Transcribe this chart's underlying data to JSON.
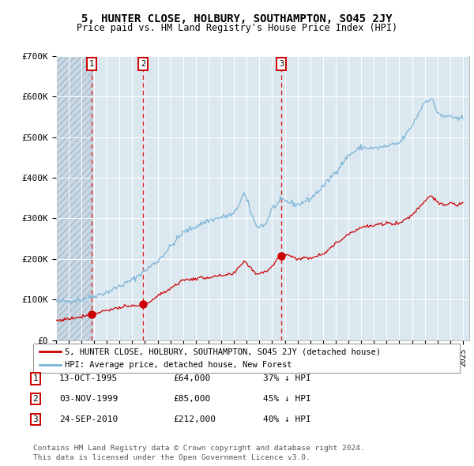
{
  "title": "5, HUNTER CLOSE, HOLBURY, SOUTHAMPTON, SO45 2JY",
  "subtitle": "Price paid vs. HM Land Registry's House Price Index (HPI)",
  "legend_line1": "5, HUNTER CLOSE, HOLBURY, SOUTHAMPTON, SO45 2JY (detached house)",
  "legend_line2": "HPI: Average price, detached house, New Forest",
  "footnote1": "Contains HM Land Registry data © Crown copyright and database right 2024.",
  "footnote2": "This data is licensed under the Open Government Licence v3.0.",
  "purchases": [
    {
      "label": "1",
      "date": "13-OCT-1995",
      "price": 64000,
      "year": 1995.79,
      "pct": "37%",
      "dir": "↓"
    },
    {
      "label": "2",
      "date": "03-NOV-1999",
      "price": 85000,
      "year": 1999.84,
      "pct": "45%",
      "dir": "↓"
    },
    {
      "label": "3",
      "date": "24-SEP-2010",
      "price": 212000,
      "year": 2010.73,
      "pct": "40%",
      "dir": "↓"
    }
  ],
  "hpi_color": "#7ab4d8",
  "price_color": "#cc0000",
  "vline_color": "#dd0000",
  "background_plot": "#dce8f0",
  "hatch_region_color": "#c8d8e4",
  "ylim": [
    0,
    700000
  ],
  "xlim_start": 1993.0,
  "xlim_end": 2025.5,
  "yticks": [
    0,
    100000,
    200000,
    300000,
    400000,
    500000,
    600000,
    700000
  ],
  "ytick_labels": [
    "£0",
    "£100K",
    "£200K",
    "£300K",
    "£400K",
    "£500K",
    "£600K",
    "£700K"
  ],
  "hpi_anchors_t": [
    1993.0,
    1995.0,
    1997.0,
    1999.0,
    2001.0,
    2003.0,
    2005.0,
    2007.0,
    2007.8,
    2008.75,
    2009.5,
    2010.0,
    2010.8,
    2011.5,
    2012.0,
    2013.0,
    2014.0,
    2015.0,
    2016.0,
    2017.0,
    2018.0,
    2019.0,
    2020.0,
    2020.5,
    2021.0,
    2021.5,
    2022.0,
    2022.5,
    2023.0,
    2023.5,
    2024.0,
    2024.5,
    2025.0
  ],
  "hpi_anchors_v": [
    95000,
    100000,
    118000,
    148000,
    195000,
    265000,
    295000,
    310000,
    362000,
    280000,
    285000,
    325000,
    345000,
    338000,
    333000,
    348000,
    378000,
    415000,
    455000,
    475000,
    472000,
    477000,
    485000,
    505000,
    528000,
    558000,
    588000,
    595000,
    562000,
    548000,
    554000,
    542000,
    548000
  ],
  "price_anchors_t": [
    1993.0,
    1994.5,
    1995.79,
    1997.0,
    1998.0,
    1999.0,
    1999.84,
    2001.0,
    2002.0,
    2003.0,
    2005.0,
    2006.0,
    2007.0,
    2007.8,
    2008.75,
    2009.5,
    2010.0,
    2010.73,
    2011.5,
    2012.0,
    2013.0,
    2014.0,
    2015.0,
    2016.0,
    2017.0,
    2018.0,
    2019.0,
    2020.0,
    2021.0,
    2022.0,
    2022.5,
    2023.0,
    2023.5,
    2024.0,
    2024.5,
    2025.0
  ],
  "price_anchors_v": [
    48000,
    55000,
    64000,
    74000,
    80000,
    84000,
    85000,
    108000,
    128000,
    148000,
    155000,
    158000,
    163000,
    196000,
    163000,
    170000,
    182000,
    212000,
    208000,
    200000,
    203000,
    213000,
    237000,
    262000,
    278000,
    282000,
    288000,
    288000,
    308000,
    343000,
    358000,
    338000,
    332000,
    338000,
    332000,
    338000
  ]
}
